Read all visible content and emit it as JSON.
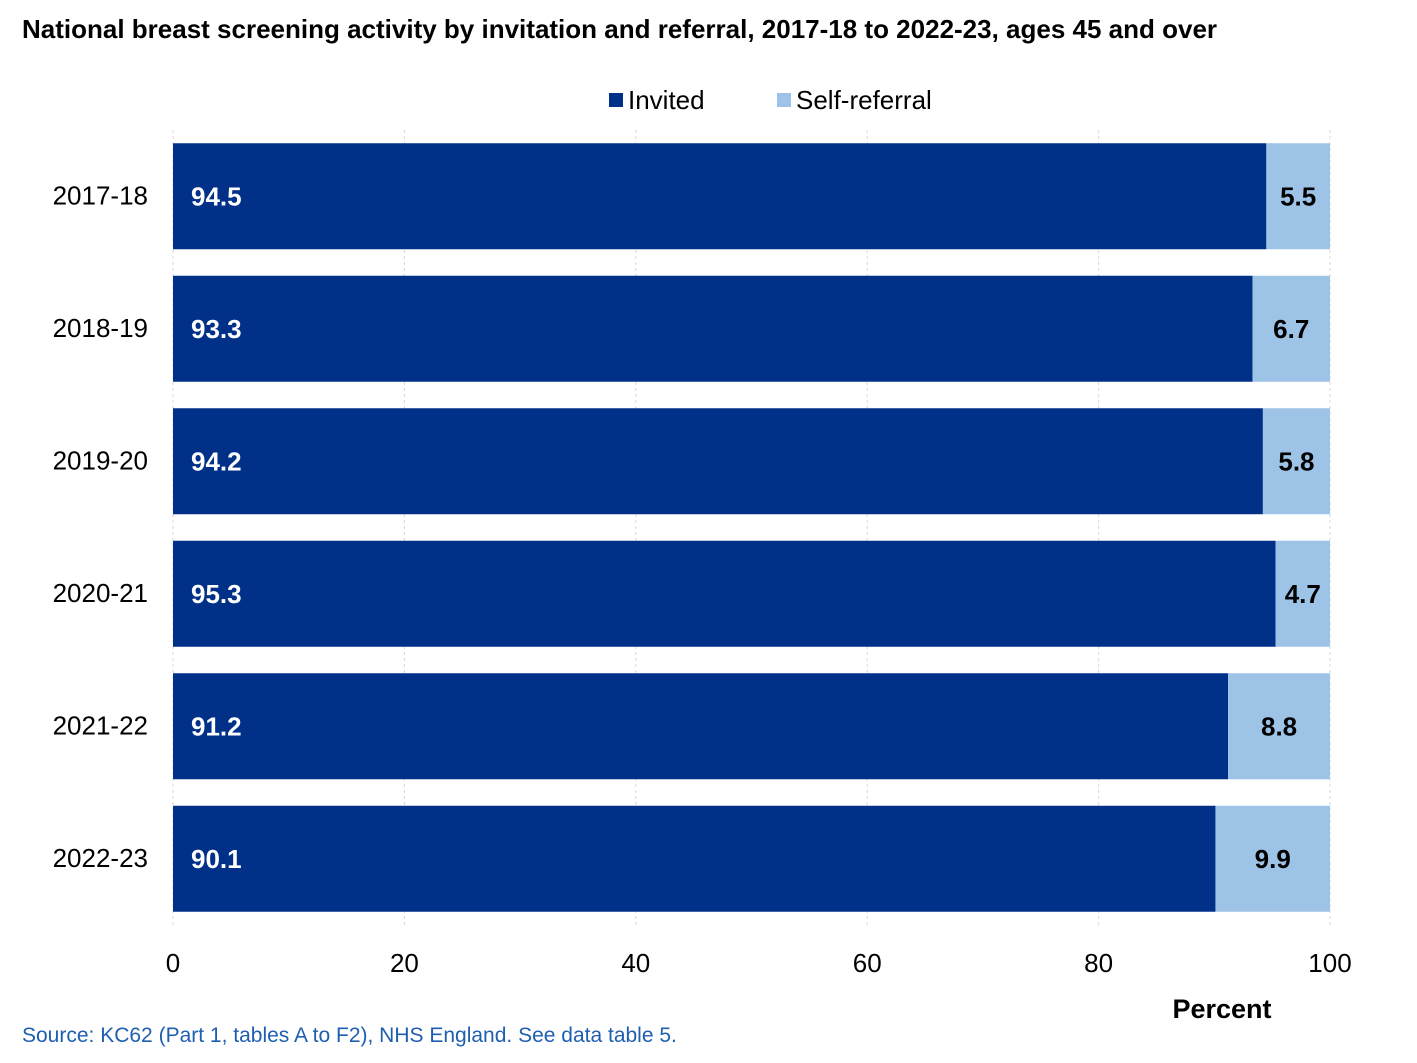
{
  "chart_data": {
    "type": "bar",
    "orientation": "horizontal",
    "stacked": true,
    "title": "National breast screening activity by invitation and referral, 2017-18 to 2022-23, ages 45 and over",
    "xlabel": "Percent",
    "ylabel": "",
    "xlim": [
      0,
      100
    ],
    "xticks": [
      "0",
      "20",
      "40",
      "60",
      "80",
      "100"
    ],
    "grid": true,
    "legend_position": "top-right",
    "categories": [
      "2017-18",
      "2018-19",
      "2019-20",
      "2020-21",
      "2021-22",
      "2022-23"
    ],
    "series": [
      {
        "name": "Invited",
        "color": "#003087",
        "label_color": "#ffffff",
        "values": [
          94.5,
          93.3,
          94.2,
          95.3,
          91.2,
          90.1
        ]
      },
      {
        "name": "Self-referral",
        "color": "#9dc3e6",
        "label_color": "#000000",
        "values": [
          5.5,
          6.7,
          5.8,
          4.7,
          8.8,
          9.9
        ]
      }
    ],
    "value_labels": [
      [
        "94.5",
        "93.3",
        "94.2",
        "95.3",
        "91.2",
        "90.1"
      ],
      [
        "5.5",
        "6.7",
        "5.8",
        "4.7",
        "8.8",
        "9.9"
      ]
    ]
  },
  "source": "Source: KC62 (Part 1, tables A to F2), NHS England. See data table 5."
}
